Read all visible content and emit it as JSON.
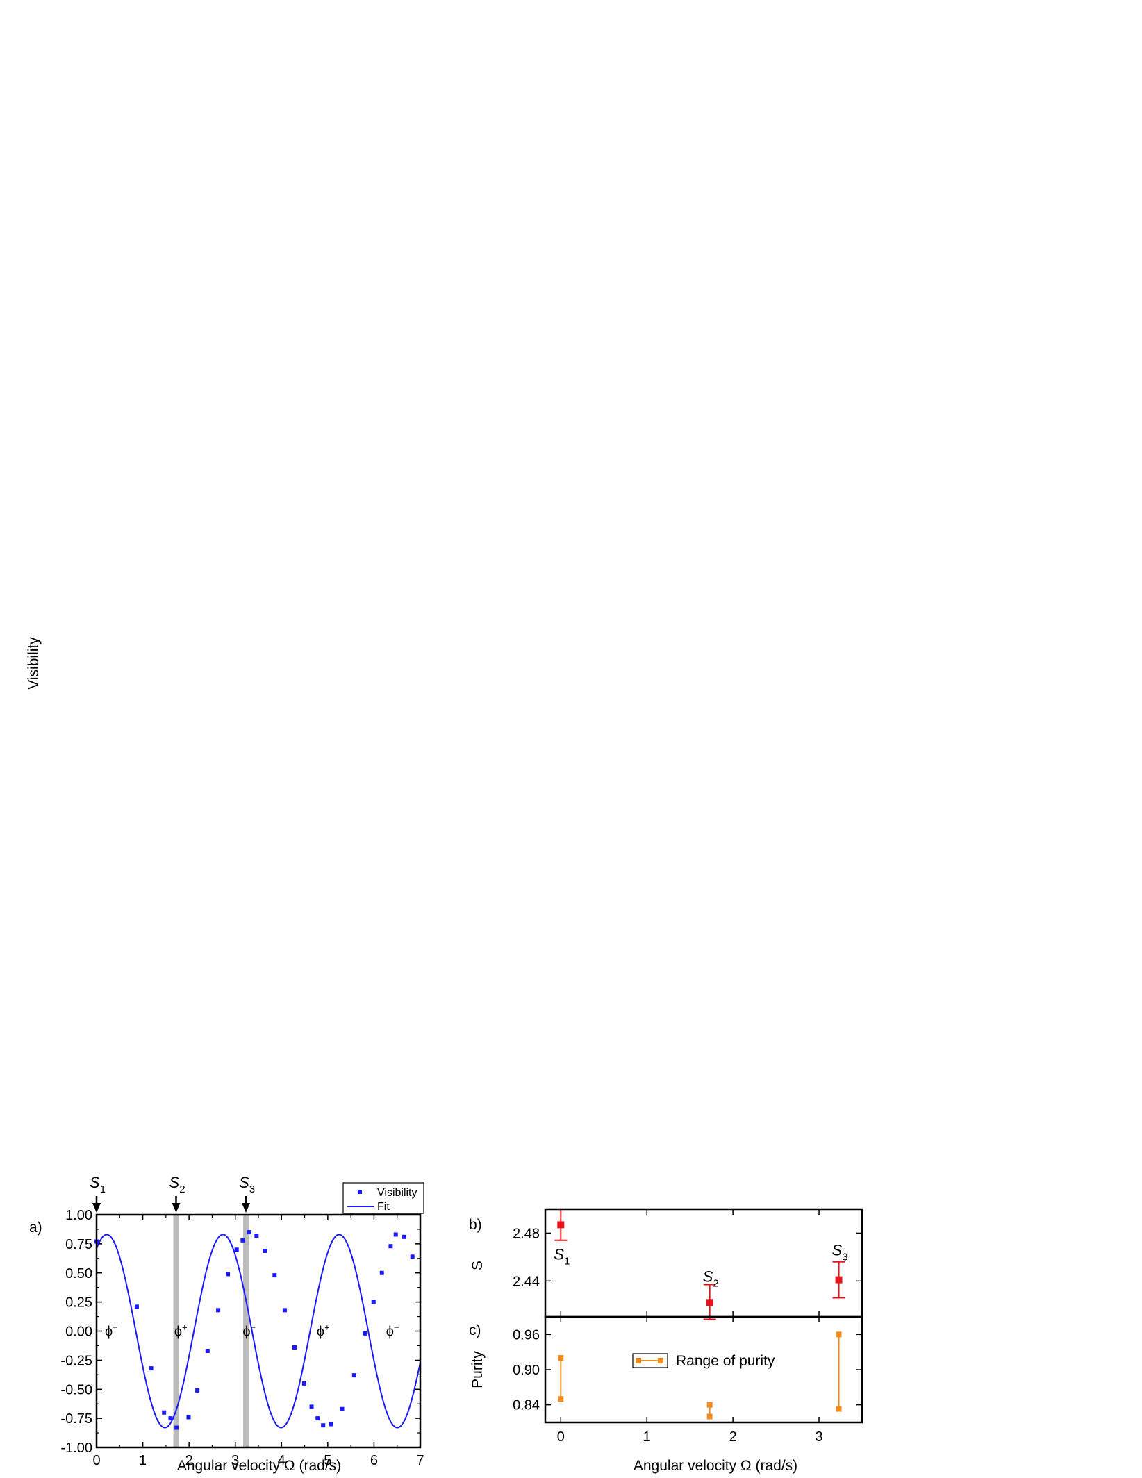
{
  "chart_data": [
    {
      "id": "a",
      "panel_label": "a)",
      "type": "scatter",
      "xlabel": "Angular velocity Ω (rad/s)",
      "ylabel": "Visibility",
      "xlim": [
        0,
        7
      ],
      "ylim": [
        -1.0,
        1.0
      ],
      "xticks": [
        "0",
        "1",
        "2",
        "3",
        "4",
        "5",
        "6",
        "7"
      ],
      "yticks": [
        "1.00",
        "0.75",
        "0.50",
        "0.25",
        "0.00",
        "-0.25",
        "-0.50",
        "-0.75",
        "-1.00"
      ],
      "legend": {
        "position": "top-right",
        "entries": [
          "Visibility",
          "Fit"
        ]
      },
      "colors": {
        "series": "#1a1aff",
        "band": "#bbbbbb"
      },
      "series": [
        {
          "name": "Visibility",
          "x": [
            0,
            0.87,
            1.18,
            1.46,
            1.6,
            1.73,
            1.99,
            2.18,
            2.4,
            2.63,
            2.84,
            3.03,
            3.16,
            3.3,
            3.46,
            3.64,
            3.85,
            4.07,
            4.28,
            4.49,
            4.65,
            4.78,
            4.9,
            5.07,
            5.31,
            5.57,
            5.8,
            5.99,
            6.17,
            6.36,
            6.47,
            6.65,
            6.83
          ],
          "y": [
            0.77,
            0.21,
            -0.32,
            -0.7,
            -0.75,
            -0.83,
            -0.74,
            -0.51,
            -0.17,
            0.18,
            0.49,
            0.7,
            0.78,
            0.85,
            0.82,
            0.69,
            0.48,
            0.18,
            -0.14,
            -0.45,
            -0.65,
            -0.75,
            -0.81,
            -0.8,
            -0.67,
            -0.38,
            -0.02,
            0.25,
            0.5,
            0.73,
            0.83,
            0.81,
            0.64
          ]
        },
        {
          "name": "Fit",
          "model": "0.83*cos(2.5*(x-0.22))",
          "amplitude": 0.83,
          "omega": 2.5,
          "phase": 0.22
        }
      ],
      "state_bands": [
        1.72,
        3.23
      ],
      "arrows": [
        {
          "x": 0,
          "label": "S",
          "sub": "1"
        },
        {
          "x": 1.72,
          "label": "S",
          "sub": "2"
        },
        {
          "x": 3.23,
          "label": "S",
          "sub": "3"
        }
      ],
      "state_labels": [
        {
          "x": 0.3,
          "text": "ϕ",
          "sup": "−"
        },
        {
          "x": 1.8,
          "text": "ϕ",
          "sup": "+"
        },
        {
          "x": 3.28,
          "text": "ϕ",
          "sup": "−"
        },
        {
          "x": 4.88,
          "text": "ϕ",
          "sup": "+"
        },
        {
          "x": 6.38,
          "text": "ϕ",
          "sup": "−"
        }
      ]
    },
    {
      "id": "b",
      "panel_label": "b)",
      "type": "scatter",
      "ylabel": "S",
      "xlim": [
        -0.18,
        3.5
      ],
      "ylim": [
        2.41,
        2.5
      ],
      "yticks": [
        {
          "v": 2.48,
          "label": "2.48"
        },
        {
          "v": 2.44,
          "label": "2.44"
        }
      ],
      "color": "#e8141c",
      "series": [
        {
          "name": "S",
          "points": [
            {
              "x": 0,
              "y": 2.487,
              "lo": 2.474,
              "hi": 2.5,
              "label": "S",
              "sub": "1"
            },
            {
              "x": 1.73,
              "y": 2.422,
              "lo": 2.408,
              "hi": 2.437,
              "label": "S",
              "sub": "2"
            },
            {
              "x": 3.23,
              "y": 2.441,
              "lo": 2.426,
              "hi": 2.456,
              "label": "S",
              "sub": "3"
            }
          ]
        }
      ]
    },
    {
      "id": "c",
      "panel_label": "c)",
      "type": "scatter",
      "xlabel": "Angular velocity Ω (rad/s)",
      "ylabel": "Purity",
      "xlim": [
        -0.18,
        3.5
      ],
      "ylim": [
        0.81,
        0.99
      ],
      "xticks": [
        {
          "v": 0,
          "label": "0"
        },
        {
          "v": 1,
          "label": "1"
        },
        {
          "v": 2,
          "label": "2"
        },
        {
          "v": 3,
          "label": "3"
        }
      ],
      "yticks": [
        {
          "v": 0.96,
          "label": "0.96"
        },
        {
          "v": 0.9,
          "label": "0.90"
        },
        {
          "v": 0.84,
          "label": "0.84"
        }
      ],
      "color": "#f08c1e",
      "legend": {
        "position": "top-center",
        "entries": [
          "Range of purity"
        ]
      },
      "series": [
        {
          "name": "Range of purity",
          "ranges": [
            {
              "x": 0,
              "lo": 0.85,
              "hi": 0.92
            },
            {
              "x": 1.73,
              "lo": 0.82,
              "hi": 0.84
            },
            {
              "x": 3.23,
              "lo": 0.833,
              "hi": 0.96
            }
          ]
        }
      ]
    }
  ]
}
